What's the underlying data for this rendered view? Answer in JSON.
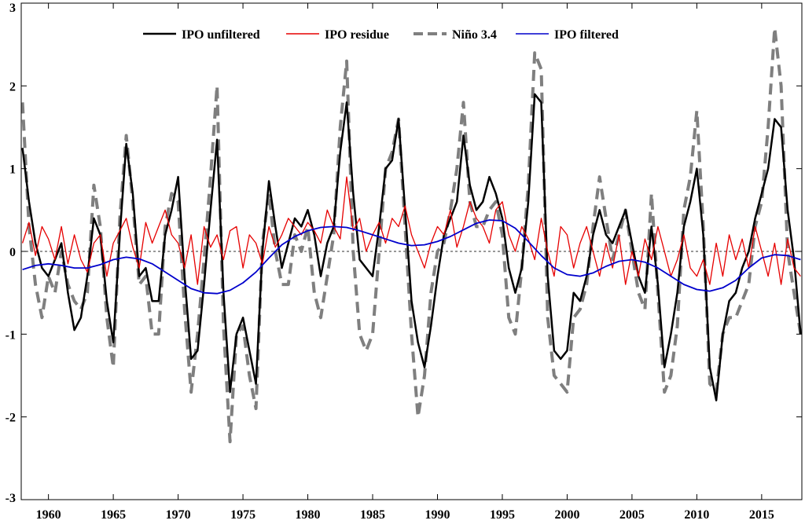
{
  "chart_data": {
    "type": "line",
    "title": "",
    "xlabel": "",
    "ylabel": "",
    "xlim": [
      1957.9,
      2018.1
    ],
    "ylim": [
      -3,
      3
    ],
    "x_ticks": [
      1960,
      1965,
      1970,
      1975,
      1980,
      1985,
      1990,
      1995,
      2000,
      2005,
      2010,
      2015
    ],
    "y_ticks": [
      -3,
      -2,
      -1,
      0,
      1,
      2,
      3
    ],
    "zero_line": true,
    "legend": {
      "placement": "top-center",
      "orientation": "horizontal"
    },
    "series": [
      {
        "name": "IPO unfiltered",
        "color": "#000000",
        "style": "solid",
        "x": [
          1958.0,
          1958.5,
          1959.0,
          1959.5,
          1960.0,
          1960.5,
          1961.0,
          1961.5,
          1962.0,
          1962.5,
          1963.0,
          1963.5,
          1964.0,
          1964.5,
          1965.0,
          1965.5,
          1966.0,
          1966.5,
          1967.0,
          1967.5,
          1968.0,
          1968.5,
          1969.0,
          1969.5,
          1970.0,
          1970.5,
          1971.0,
          1971.5,
          1972.0,
          1972.5,
          1973.0,
          1973.5,
          1974.0,
          1974.5,
          1975.0,
          1975.5,
          1976.0,
          1976.5,
          1977.0,
          1977.5,
          1978.0,
          1978.5,
          1979.0,
          1979.5,
          1980.0,
          1980.5,
          1981.0,
          1981.5,
          1982.0,
          1982.5,
          1983.0,
          1983.5,
          1984.0,
          1984.5,
          1985.0,
          1985.5,
          1986.0,
          1986.5,
          1987.0,
          1987.5,
          1988.0,
          1988.5,
          1989.0,
          1989.5,
          1990.0,
          1990.5,
          1991.0,
          1991.5,
          1992.0,
          1992.5,
          1993.0,
          1993.5,
          1994.0,
          1994.5,
          1995.0,
          1995.5,
          1996.0,
          1996.5,
          1997.0,
          1997.5,
          1998.0,
          1998.5,
          1999.0,
          1999.5,
          2000.0,
          2000.5,
          2001.0,
          2001.5,
          2002.0,
          2002.5,
          2003.0,
          2003.5,
          2004.0,
          2004.5,
          2005.0,
          2005.5,
          2006.0,
          2006.5,
          2007.0,
          2007.5,
          2008.0,
          2008.5,
          2009.0,
          2009.5,
          2010.0,
          2010.5,
          2011.0,
          2011.5,
          2012.0,
          2012.5,
          2013.0,
          2013.5,
          2014.0,
          2014.5,
          2015.0,
          2015.5,
          2016.0,
          2016.5,
          2017.0,
          2017.5,
          2018.0
        ],
        "y": [
          1.25,
          0.6,
          0.1,
          -0.2,
          -0.3,
          -0.1,
          0.1,
          -0.5,
          -0.95,
          -0.8,
          -0.3,
          0.4,
          0.2,
          -0.6,
          -1.1,
          0.2,
          1.3,
          0.7,
          -0.3,
          -0.2,
          -0.6,
          -0.6,
          0.2,
          0.5,
          0.9,
          -0.3,
          -1.3,
          -1.2,
          -0.4,
          0.5,
          1.35,
          -0.5,
          -1.7,
          -1.0,
          -0.8,
          -1.2,
          -1.6,
          0.0,
          0.85,
          0.3,
          -0.2,
          0.1,
          0.4,
          0.3,
          0.5,
          0.2,
          -0.3,
          0.1,
          0.3,
          1.2,
          1.8,
          0.7,
          -0.1,
          -0.2,
          -0.3,
          0.3,
          1.0,
          1.1,
          1.6,
          0.5,
          -0.6,
          -1.1,
          -1.4,
          -0.9,
          -0.3,
          0.2,
          0.4,
          0.6,
          1.4,
          0.8,
          0.5,
          0.6,
          0.9,
          0.7,
          0.4,
          -0.2,
          -0.5,
          -0.2,
          0.6,
          1.9,
          1.8,
          -0.3,
          -1.2,
          -1.3,
          -1.2,
          -0.5,
          -0.6,
          -0.3,
          0.2,
          0.5,
          0.2,
          0.1,
          0.3,
          0.5,
          0.1,
          -0.3,
          -0.5,
          0.3,
          -0.4,
          -1.4,
          -1.0,
          -0.5,
          0.3,
          0.6,
          1.0,
          0.2,
          -1.4,
          -1.8,
          -1.0,
          -0.6,
          -0.5,
          -0.2,
          0.0,
          0.4,
          0.7,
          1.0,
          1.6,
          1.5,
          0.5,
          -0.1,
          -1.0
        ]
      },
      {
        "name": "IPO residue",
        "color": "#e60000",
        "style": "solid",
        "x": [
          1958.0,
          1958.5,
          1959.0,
          1959.5,
          1960.0,
          1960.5,
          1961.0,
          1961.5,
          1962.0,
          1962.5,
          1963.0,
          1963.5,
          1964.0,
          1964.5,
          1965.0,
          1965.5,
          1966.0,
          1966.5,
          1967.0,
          1967.5,
          1968.0,
          1968.5,
          1969.0,
          1969.5,
          1970.0,
          1970.5,
          1971.0,
          1971.5,
          1972.0,
          1972.5,
          1973.0,
          1973.5,
          1974.0,
          1974.5,
          1975.0,
          1975.5,
          1976.0,
          1976.5,
          1977.0,
          1977.5,
          1978.0,
          1978.5,
          1979.0,
          1979.5,
          1980.0,
          1980.5,
          1981.0,
          1981.5,
          1982.0,
          1982.5,
          1983.0,
          1983.5,
          1984.0,
          1984.5,
          1985.0,
          1985.5,
          1986.0,
          1986.5,
          1987.0,
          1987.5,
          1988.0,
          1988.5,
          1989.0,
          1989.5,
          1990.0,
          1990.5,
          1991.0,
          1991.5,
          1992.0,
          1992.5,
          1993.0,
          1993.5,
          1994.0,
          1994.5,
          1995.0,
          1995.5,
          1996.0,
          1996.5,
          1997.0,
          1997.5,
          1998.0,
          1998.5,
          1999.0,
          1999.5,
          2000.0,
          2000.5,
          2001.0,
          2001.5,
          2002.0,
          2002.5,
          2003.0,
          2003.5,
          2004.0,
          2004.5,
          2005.0,
          2005.5,
          2006.0,
          2006.5,
          2007.0,
          2007.5,
          2008.0,
          2008.5,
          2009.0,
          2009.5,
          2010.0,
          2010.5,
          2011.0,
          2011.5,
          2012.0,
          2012.5,
          2013.0,
          2013.5,
          2014.0,
          2014.5,
          2015.0,
          2015.5,
          2016.0,
          2016.5,
          2017.0,
          2017.5,
          2018.0
        ],
        "y": [
          0.1,
          0.35,
          -0.05,
          0.3,
          0.15,
          -0.1,
          0.3,
          -0.15,
          0.2,
          -0.1,
          -0.25,
          0.1,
          0.2,
          -0.3,
          0.1,
          0.25,
          0.4,
          0.05,
          -0.2,
          0.35,
          0.1,
          0.3,
          0.5,
          0.2,
          0.1,
          -0.2,
          0.2,
          -0.4,
          0.3,
          0.05,
          0.2,
          -0.1,
          0.25,
          0.3,
          -0.2,
          0.2,
          0.1,
          -0.15,
          0.3,
          0.05,
          0.2,
          0.4,
          0.3,
          0.2,
          0.35,
          0.25,
          0.1,
          0.5,
          0.3,
          0.15,
          0.9,
          0.25,
          0.4,
          0.0,
          0.2,
          0.35,
          0.1,
          0.4,
          0.3,
          0.55,
          0.2,
          0.0,
          -0.2,
          0.1,
          0.3,
          0.2,
          0.5,
          0.05,
          0.3,
          0.6,
          0.4,
          0.3,
          0.1,
          0.5,
          0.6,
          0.2,
          0.0,
          0.3,
          0.15,
          -0.1,
          0.4,
          0.0,
          -0.3,
          0.3,
          0.2,
          -0.2,
          0.1,
          0.3,
          0.0,
          -0.3,
          0.1,
          -0.2,
          0.2,
          -0.4,
          0.0,
          -0.3,
          0.15,
          -0.1,
          0.3,
          0.0,
          -0.3,
          -0.1,
          0.2,
          -0.2,
          -0.3,
          -0.1,
          -0.4,
          0.1,
          -0.3,
          0.2,
          -0.1,
          0.15,
          -0.2,
          0.3,
          0.0,
          -0.3,
          0.1,
          -0.4,
          0.15,
          -0.2,
          -0.3
        ]
      },
      {
        "name": "Niño 3.4",
        "color": "#7f7f7f",
        "style": "dashed",
        "x": [
          1958.0,
          1958.5,
          1959.0,
          1959.5,
          1960.0,
          1960.5,
          1961.0,
          1961.5,
          1962.0,
          1962.5,
          1963.0,
          1963.5,
          1964.0,
          1964.5,
          1965.0,
          1965.5,
          1966.0,
          1966.5,
          1967.0,
          1967.5,
          1968.0,
          1968.5,
          1969.0,
          1969.5,
          1970.0,
          1970.5,
          1971.0,
          1971.5,
          1972.0,
          1972.5,
          1973.0,
          1973.5,
          1974.0,
          1974.5,
          1975.0,
          1975.5,
          1976.0,
          1976.5,
          1977.0,
          1977.5,
          1978.0,
          1978.5,
          1979.0,
          1979.5,
          1980.0,
          1980.5,
          1981.0,
          1981.5,
          1982.0,
          1982.5,
          1983.0,
          1983.5,
          1984.0,
          1984.5,
          1985.0,
          1985.5,
          1986.0,
          1986.5,
          1987.0,
          1987.5,
          1988.0,
          1988.5,
          1989.0,
          1989.5,
          1990.0,
          1990.5,
          1991.0,
          1991.5,
          1992.0,
          1992.5,
          1993.0,
          1993.5,
          1994.0,
          1994.5,
          1995.0,
          1995.5,
          1996.0,
          1996.5,
          1997.0,
          1997.5,
          1998.0,
          1998.5,
          1999.0,
          1999.5,
          2000.0,
          2000.5,
          2001.0,
          2001.5,
          2002.0,
          2002.5,
          2003.0,
          2003.5,
          2004.0,
          2004.5,
          2005.0,
          2005.5,
          2006.0,
          2006.5,
          2007.0,
          2007.5,
          2008.0,
          2008.5,
          2009.0,
          2009.5,
          2010.0,
          2010.5,
          2011.0,
          2011.5,
          2012.0,
          2012.5,
          2013.0,
          2013.5,
          2014.0,
          2014.5,
          2015.0,
          2015.5,
          2016.0,
          2016.5,
          2017.0,
          2017.5,
          2018.0
        ],
        "y": [
          1.8,
          0.3,
          -0.4,
          -0.8,
          -0.3,
          -0.5,
          0.0,
          -0.4,
          -0.6,
          -0.7,
          -0.5,
          0.8,
          0.3,
          -0.8,
          -1.4,
          0.4,
          1.4,
          0.6,
          -0.4,
          -0.3,
          -1.0,
          -1.0,
          0.3,
          0.7,
          0.6,
          -0.7,
          -1.7,
          -1.0,
          -0.1,
          0.9,
          2.0,
          -0.9,
          -2.3,
          -1.0,
          -0.9,
          -1.5,
          -1.9,
          0.1,
          0.7,
          0.0,
          -0.4,
          -0.4,
          0.2,
          0.0,
          0.3,
          -0.5,
          -0.8,
          -0.3,
          0.2,
          1.5,
          2.3,
          0.0,
          -1.0,
          -1.2,
          -1.0,
          0.0,
          1.0,
          1.2,
          1.6,
          0.3,
          -1.0,
          -2.0,
          -1.5,
          -0.5,
          0.0,
          0.1,
          0.5,
          1.0,
          1.8,
          0.6,
          0.3,
          0.3,
          0.5,
          0.6,
          0.2,
          -0.8,
          -1.0,
          -0.2,
          0.8,
          2.4,
          2.2,
          -0.8,
          -1.5,
          -1.6,
          -1.7,
          -0.8,
          -0.7,
          -0.4,
          0.3,
          0.9,
          0.4,
          -0.1,
          0.2,
          0.5,
          0.0,
          -0.5,
          -0.7,
          0.7,
          -0.5,
          -1.7,
          -1.5,
          -0.9,
          0.5,
          0.9,
          1.7,
          0.3,
          -1.6,
          -1.7,
          -1.0,
          -0.8,
          -0.8,
          -0.6,
          -0.4,
          0.3,
          0.6,
          1.5,
          2.7,
          2.0,
          0.0,
          -0.5,
          -1.0
        ]
      },
      {
        "name": "IPO filtered",
        "color": "#0000cc",
        "style": "solid",
        "x": [
          1958,
          1959,
          1960,
          1961,
          1962,
          1963,
          1964,
          1965,
          1966,
          1967,
          1968,
          1969,
          1970,
          1971,
          1972,
          1973,
          1974,
          1975,
          1976,
          1977,
          1978,
          1979,
          1980,
          1981,
          1982,
          1983,
          1984,
          1985,
          1986,
          1987,
          1988,
          1989,
          1990,
          1991,
          1992,
          1993,
          1994,
          1995,
          1996,
          1997,
          1998,
          1999,
          2000,
          2001,
          2002,
          2003,
          2004,
          2005,
          2006,
          2007,
          2008,
          2009,
          2010,
          2011,
          2012,
          2013,
          2014,
          2015,
          2016,
          2017,
          2018
        ],
        "y": [
          -0.22,
          -0.17,
          -0.15,
          -0.17,
          -0.2,
          -0.2,
          -0.16,
          -0.1,
          -0.07,
          -0.09,
          -0.15,
          -0.25,
          -0.35,
          -0.45,
          -0.5,
          -0.51,
          -0.47,
          -0.38,
          -0.25,
          -0.08,
          0.08,
          0.18,
          0.25,
          0.29,
          0.3,
          0.29,
          0.25,
          0.2,
          0.15,
          0.1,
          0.07,
          0.08,
          0.12,
          0.18,
          0.26,
          0.34,
          0.38,
          0.37,
          0.28,
          0.12,
          -0.05,
          -0.2,
          -0.28,
          -0.3,
          -0.26,
          -0.18,
          -0.12,
          -0.1,
          -0.13,
          -0.2,
          -0.3,
          -0.4,
          -0.46,
          -0.48,
          -0.44,
          -0.35,
          -0.2,
          -0.08,
          -0.04,
          -0.05,
          -0.1
        ]
      }
    ]
  }
}
